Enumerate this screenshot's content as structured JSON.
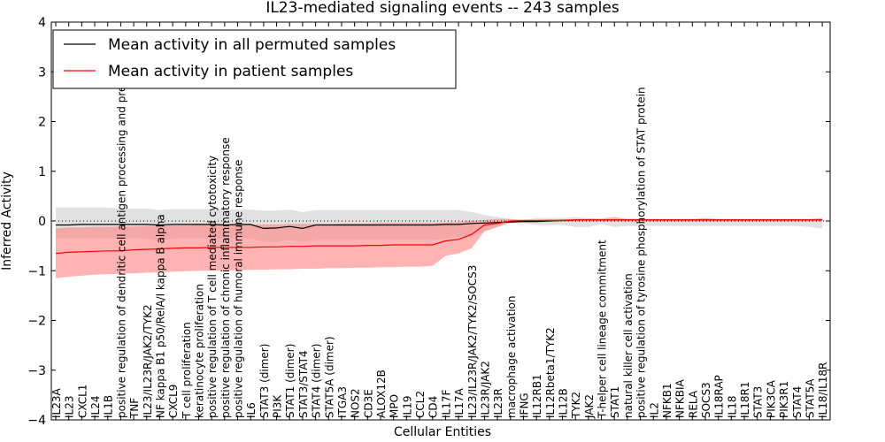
{
  "chart_data": {
    "type": "line",
    "title": "IL23-mediated signaling events -- 243 samples",
    "xlabel": "Cellular Entities",
    "ylabel": "Inferred Activity",
    "ylim": [
      -4,
      4
    ],
    "yticks": [
      -4,
      -3,
      -2,
      -1,
      0,
      1,
      2,
      3,
      4
    ],
    "legend_position": "top-left",
    "categories": [
      "IL23A",
      "IL23",
      "CXCL1",
      "IL24",
      "IL1B",
      "positive regulation of dendritic cell antigen processing and presentation",
      "TNF",
      "IL23/IL23R/JAK2/TYK2",
      "NF kappa B1 p50/RelA/I kappa B alpha",
      "CXCL9",
      "T cell proliferation",
      "keratinocyte proliferation",
      "positive regulation of T cell mediated cytotoxicity",
      "positive regulation of chronic inflammatory response",
      "positive regulation of humoral immune response",
      "IL6",
      "STAT3 (dimer)",
      "PI3K",
      "STAT1 (dimer)",
      "STAT3/STAT4",
      "STAT4 (dimer)",
      "STAT5A (dimer)",
      "ITGA3",
      "NOS2",
      "CD3E",
      "ALOX12B",
      "MPO",
      "IL19",
      "CCL2",
      "CD4",
      "IL17F",
      "IL17A",
      "IL23/IL23R/JAK2/TYK2/SOCS3",
      "IL23R/JAK2",
      "IL23R",
      "macrophage activation",
      "IFNG",
      "IL12RB1",
      "IL12Rbeta1/TYK2",
      "IL12B",
      "TYK2",
      "JAK2",
      "T-helper cell lineage commitment",
      "STAT1",
      "natural killer cell activation",
      "positive regulation of tyrosine phosphorylation of STAT protein",
      "IL2",
      "NFKB1",
      "NFKBIA",
      "RELA",
      "SOCS3",
      "IL18RAP",
      "IL18",
      "IL18R1",
      "STAT3",
      "PIK3CA",
      "PIK3R1",
      "STAT4",
      "STAT5A",
      "IL18/IL18R"
    ],
    "series": [
      {
        "name": "Mean activity in all permuted samples",
        "color": "#000000",
        "band_color": "#c8c8c8",
        "values": [
          -0.08,
          -0.08,
          -0.07,
          -0.07,
          -0.07,
          -0.07,
          -0.07,
          -0.07,
          -0.08,
          -0.07,
          -0.07,
          -0.07,
          -0.07,
          -0.08,
          -0.07,
          -0.07,
          -0.15,
          -0.14,
          -0.11,
          -0.15,
          -0.08,
          -0.08,
          -0.08,
          -0.08,
          -0.08,
          -0.08,
          -0.08,
          -0.08,
          -0.08,
          -0.08,
          -0.07,
          -0.07,
          -0.05,
          -0.04,
          -0.03,
          -0.02,
          -0.01,
          -0.01,
          0.0,
          0.01,
          0.02,
          0.02,
          0.02,
          0.02,
          0.02,
          0.02,
          0.02,
          0.02,
          0.02,
          0.02,
          0.02,
          0.02,
          0.02,
          0.02,
          0.02,
          0.02,
          0.02,
          0.02,
          0.02,
          0.02
        ],
        "upper": [
          0.27,
          0.27,
          0.27,
          0.27,
          0.27,
          0.25,
          0.25,
          0.25,
          0.22,
          0.24,
          0.24,
          0.24,
          0.24,
          0.23,
          0.23,
          0.23,
          0.21,
          0.21,
          0.23,
          0.18,
          0.22,
          0.22,
          0.22,
          0.22,
          0.22,
          0.22,
          0.22,
          0.22,
          0.22,
          0.22,
          0.22,
          0.22,
          0.18,
          0.12,
          0.08,
          0.04,
          0.02,
          0.06,
          0.06,
          0.06,
          0.08,
          0.05,
          0.03,
          0.03,
          0.05,
          0.05,
          0.04,
          0.04,
          0.04,
          0.04,
          0.04,
          0.04,
          0.04,
          0.04,
          0.04,
          0.04,
          0.04,
          0.04,
          0.04,
          0.05
        ],
        "lower": [
          -0.35,
          -0.35,
          -0.35,
          -0.35,
          -0.35,
          -0.35,
          -0.35,
          -0.35,
          -0.4,
          -0.35,
          -0.35,
          -0.35,
          -0.35,
          -0.35,
          -0.35,
          -0.35,
          -0.42,
          -0.42,
          -0.38,
          -0.42,
          -0.38,
          -0.38,
          -0.38,
          -0.38,
          -0.38,
          -0.38,
          -0.38,
          -0.38,
          -0.38,
          -0.38,
          -0.35,
          -0.32,
          -0.3,
          -0.22,
          -0.12,
          -0.05,
          -0.05,
          -0.08,
          -0.08,
          -0.08,
          -0.12,
          -0.12,
          -0.06,
          -0.12,
          -0.1,
          -0.1,
          -0.1,
          -0.1,
          -0.1,
          -0.1,
          -0.1,
          -0.1,
          -0.1,
          -0.1,
          -0.1,
          -0.1,
          -0.1,
          -0.1,
          -0.12,
          -0.15
        ]
      },
      {
        "name": "Mean activity in patient samples",
        "color": "#ff0000",
        "band_color": "#ff8080",
        "values": [
          -0.65,
          -0.63,
          -0.62,
          -0.61,
          -0.6,
          -0.6,
          -0.58,
          -0.57,
          -0.56,
          -0.55,
          -0.54,
          -0.54,
          -0.53,
          -0.53,
          -0.53,
          -0.53,
          -0.52,
          -0.52,
          -0.51,
          -0.51,
          -0.5,
          -0.5,
          -0.5,
          -0.5,
          -0.49,
          -0.49,
          -0.48,
          -0.48,
          -0.48,
          -0.48,
          -0.4,
          -0.37,
          -0.27,
          -0.08,
          -0.05,
          0.0,
          0.01,
          0.01,
          0.01,
          0.01,
          0.02,
          0.02,
          0.02,
          0.02,
          0.02,
          0.02,
          0.02,
          0.02,
          0.02,
          0.02,
          0.02,
          0.02,
          0.02,
          0.02,
          0.02,
          0.02,
          0.02,
          0.02,
          0.02,
          0.02
        ],
        "upper": [
          -0.15,
          -0.13,
          -0.13,
          -0.12,
          -0.12,
          -0.11,
          -0.11,
          -0.1,
          -0.1,
          -0.09,
          -0.09,
          -0.08,
          -0.08,
          -0.08,
          -0.08,
          -0.07,
          -0.07,
          -0.07,
          -0.06,
          -0.06,
          -0.06,
          -0.06,
          -0.05,
          -0.05,
          -0.05,
          -0.04,
          -0.04,
          -0.04,
          -0.04,
          -0.04,
          -0.03,
          -0.02,
          0.0,
          0.02,
          0.04,
          0.04,
          0.02,
          0.02,
          0.03,
          0.03,
          0.04,
          0.05,
          0.05,
          0.08,
          0.04,
          0.04,
          0.04,
          0.04,
          0.04,
          0.04,
          0.06,
          0.04,
          0.04,
          0.04,
          0.04,
          0.04,
          0.04,
          0.04,
          0.04,
          0.06
        ],
        "lower": [
          -1.15,
          -1.12,
          -1.1,
          -1.08,
          -1.07,
          -1.06,
          -1.05,
          -1.04,
          -1.03,
          -1.02,
          -1.01,
          -1.0,
          -1.0,
          -0.99,
          -0.99,
          -0.98,
          -0.98,
          -0.97,
          -0.97,
          -0.96,
          -0.96,
          -0.95,
          -0.95,
          -0.94,
          -0.94,
          -0.93,
          -0.93,
          -0.92,
          -0.92,
          -0.9,
          -0.7,
          -0.65,
          -0.55,
          -0.2,
          -0.12,
          -0.03,
          -0.01,
          -0.01,
          -0.01,
          -0.01,
          -0.01,
          -0.01,
          -0.01,
          -0.01,
          -0.01,
          -0.01,
          -0.01,
          -0.01,
          -0.01,
          -0.01,
          -0.01,
          -0.01,
          -0.01,
          -0.01,
          -0.01,
          -0.01,
          -0.01,
          -0.01,
          -0.01,
          -0.01
        ]
      }
    ]
  }
}
